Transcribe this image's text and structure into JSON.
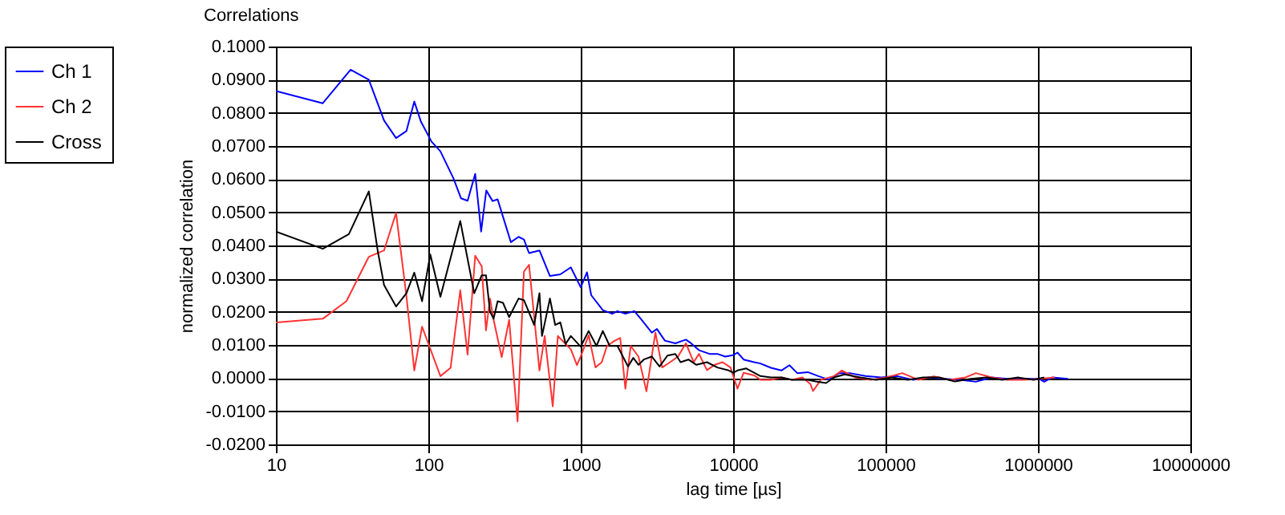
{
  "chart_data": {
    "type": "line",
    "title": "Correlations",
    "xlabel": "lag time [µs]",
    "ylabel": "normalized correlation",
    "log": "x",
    "grid": true,
    "legend": "left",
    "marker": "none",
    "line_style": "solid",
    "xlim": [
      10,
      10000000
    ],
    "xticks": [
      10,
      100,
      1000,
      10000,
      100000,
      1000000,
      10000000
    ],
    "ylim": [
      -0.02,
      0.1
    ],
    "yticks": [
      {
        "value": -0.02,
        "label": "-0.0200"
      },
      {
        "value": -0.01,
        "label": "-0.0100"
      },
      {
        "value": 0,
        "label": "0.0000"
      },
      {
        "value": 0.01,
        "label": "0.0100"
      },
      {
        "value": 0.02,
        "label": "0.0200"
      },
      {
        "value": 0.03,
        "label": "0.0300"
      },
      {
        "value": 0.04,
        "label": "0.0400"
      },
      {
        "value": 0.05,
        "label": "0.0500"
      },
      {
        "value": 0.06,
        "label": "0.0600"
      },
      {
        "value": 0.07,
        "label": "0.0700"
      },
      {
        "value": 0.08,
        "label": "0.0800"
      },
      {
        "value": 0.09,
        "label": "0.0900"
      },
      {
        "value": 0.1,
        "label": "0.1000"
      }
    ],
    "series": [
      {
        "name": "Ch 1",
        "color": "#0000ff",
        "x": [
          10,
          20.3,
          30.9,
          40.7,
          51.2,
          61.4,
          71.8,
          80.9,
          89.5,
          105,
          120,
          146,
          164,
          181,
          203,
          222,
          240,
          264,
          285,
          348,
          391,
          424,
          458,
          536,
          628,
          735,
          861,
          1000,
          1099,
          1172,
          1396,
          1610,
          1742,
          1963,
          2249,
          2495,
          2924,
          3162,
          3565,
          4178,
          4898,
          5297,
          5970,
          7000,
          7889,
          8872,
          10000,
          10670,
          11720,
          13740,
          15100,
          17700,
          20750,
          23390,
          26360,
          30900,
          36220,
          42460,
          49770,
          58340,
          73960,
          93760,
          119100,
          151000,
          191900,
          243200,
          309000,
          391700,
          497700,
          631000,
          800000,
          1016000,
          1099000,
          1239000,
          1574000
        ],
        "values": [
          0.0866,
          0.0829,
          0.093,
          0.09,
          0.0777,
          0.0724,
          0.0745,
          0.0834,
          0.0773,
          0.0713,
          0.0684,
          0.0603,
          0.0542,
          0.0535,
          0.0616,
          0.0442,
          0.0566,
          0.0534,
          0.0539,
          0.041,
          0.0426,
          0.0418,
          0.0377,
          0.0385,
          0.0308,
          0.0313,
          0.0334,
          0.0274,
          0.0319,
          0.025,
          0.0205,
          0.0194,
          0.0202,
          0.0194,
          0.0202,
          0.0177,
          0.0137,
          0.0148,
          0.0113,
          0.0105,
          0.0116,
          0.0105,
          0.0084,
          0.0073,
          0.0073,
          0.0065,
          0.0069,
          0.0077,
          0.0056,
          0.0048,
          0.0044,
          0.0031,
          0.0023,
          0.0039,
          0.0015,
          0.0018,
          0.0006,
          -0.0005,
          0.0015,
          0.0015,
          0.0006,
          0.0002,
          0.0006,
          -0.0005,
          0.0002,
          -0.0002,
          -0.0005,
          -0.0011,
          0.0002,
          -0.0002,
          -0.0002,
          -0.0002,
          -0.0011,
          0.0002,
          -0.0002
        ]
      },
      {
        "name": "Ch 2",
        "color": "#ff3333",
        "x": [
          10,
          20.3,
          29,
          40.7,
          51.2,
          61.4,
          71.8,
          80.9,
          91,
          120,
          140,
          162,
          181,
          203,
          224,
          239,
          254,
          268,
          303,
          339,
          385,
          424,
          458,
          536,
          580,
          655,
          708,
          765,
          861,
          944,
          1000,
          1127,
          1250,
          1374,
          1486,
          1675,
          1816,
          1963,
          2128,
          2393,
          2698,
          2924,
          3090,
          3420,
          3855,
          4345,
          4898,
          5508,
          5970,
          6730,
          7568,
          8531,
          9616,
          10670,
          11720,
          13740,
          15100,
          17700,
          20750,
          24320,
          28510,
          32140,
          33420,
          37670,
          45920,
          51760,
          63100,
          80000,
          101600,
          128800,
          163700,
          207500,
          263600,
          334200,
          391700,
          497700,
          631000,
          800000,
          1016000,
          1288000
        ],
        "values": [
          0.0168,
          0.0179,
          0.0232,
          0.0366,
          0.0385,
          0.0498,
          0.0248,
          0.0023,
          0.0155,
          0.0006,
          0.0031,
          0.0265,
          0.0071,
          0.0369,
          0.0337,
          0.0144,
          0.024,
          0.0176,
          0.0063,
          0.0176,
          -0.0131,
          0.0321,
          0.0342,
          0.0023,
          0.0127,
          -0.0085,
          0.0127,
          0.0111,
          0.0087,
          0.0039,
          0.0065,
          0.0129,
          0.0032,
          0.0048,
          0.0097,
          0.0113,
          0.0121,
          -0.0032,
          0.0097,
          0.0065,
          -0.004,
          0.0065,
          0.0137,
          0.0032,
          0.0048,
          0.0065,
          0.0105,
          0.0048,
          0.0073,
          0.0024,
          0.004,
          0.0048,
          0.0032,
          -0.0032,
          0.0016,
          0.0008,
          -0.0005,
          -0.0005,
          0.0002,
          -0.0005,
          0.0002,
          -0.0018,
          -0.0039,
          -0.0005,
          0.0006,
          0.0023,
          0.0002,
          -0.0005,
          0.0002,
          0.0015,
          -0.0005,
          0.0005,
          -0.0005,
          0.0002,
          0.0015,
          0.0002,
          -0.0005,
          -0.0005,
          -0.0002,
          0.0002
        ]
      },
      {
        "name": "Cross",
        "color": "#000000",
        "x": [
          10,
          20.3,
          30.1,
          40.7,
          46.5,
          51.2,
          61.4,
          71.8,
          80.9,
          91,
          103,
          120,
          162,
          200,
          224,
          239,
          254,
          268,
          285,
          309,
          339,
          391,
          424,
          495,
          536,
          557,
          628,
          680,
          735,
          796,
          861,
          1000,
          1127,
          1268,
          1396,
          1549,
          1742,
          2042,
          2213,
          2393,
          2594,
          2924,
          3289,
          3707,
          4178,
          4519,
          5093,
          5741,
          6730,
          7889,
          9247,
          10000,
          10810,
          12190,
          13740,
          15100,
          17700,
          20750,
          24320,
          30900,
          34750,
          40740,
          45920,
          53830,
          68230,
          86700,
          109900,
          139600,
          177000,
          224900,
          285100,
          362200,
          459200,
          583400,
          739600,
          937600,
          1099000
        ],
        "values": [
          0.0442,
          0.039,
          0.0434,
          0.0563,
          0.0385,
          0.0281,
          0.0216,
          0.0256,
          0.0318,
          0.0232,
          0.0373,
          0.0245,
          0.0474,
          0.0256,
          0.031,
          0.031,
          0.02,
          0.0179,
          0.0232,
          0.0227,
          0.0184,
          0.024,
          0.0235,
          0.016,
          0.0256,
          0.0127,
          0.024,
          0.016,
          0.0168,
          0.0103,
          0.0127,
          0.0095,
          0.0142,
          0.0097,
          0.0142,
          0.0097,
          0.0097,
          0.0035,
          0.0061,
          0.004,
          0.0056,
          0.0065,
          0.0035,
          0.0068,
          0.0073,
          0.0048,
          0.0056,
          0.004,
          0.0048,
          0.0032,
          0.0024,
          0.0016,
          0.0024,
          0.0029,
          0.0016,
          0.0006,
          0.0002,
          0.0002,
          -0.0005,
          -0.0005,
          -0.001,
          -0.0015,
          0.0002,
          0.0011,
          0.0002,
          -0.0005,
          0.0002,
          -0.0005,
          0.0002,
          0.0002,
          -0.001,
          -0.0002,
          0.0002,
          -0.0005,
          0.0002,
          -0.0005,
          0.0002
        ]
      }
    ]
  }
}
